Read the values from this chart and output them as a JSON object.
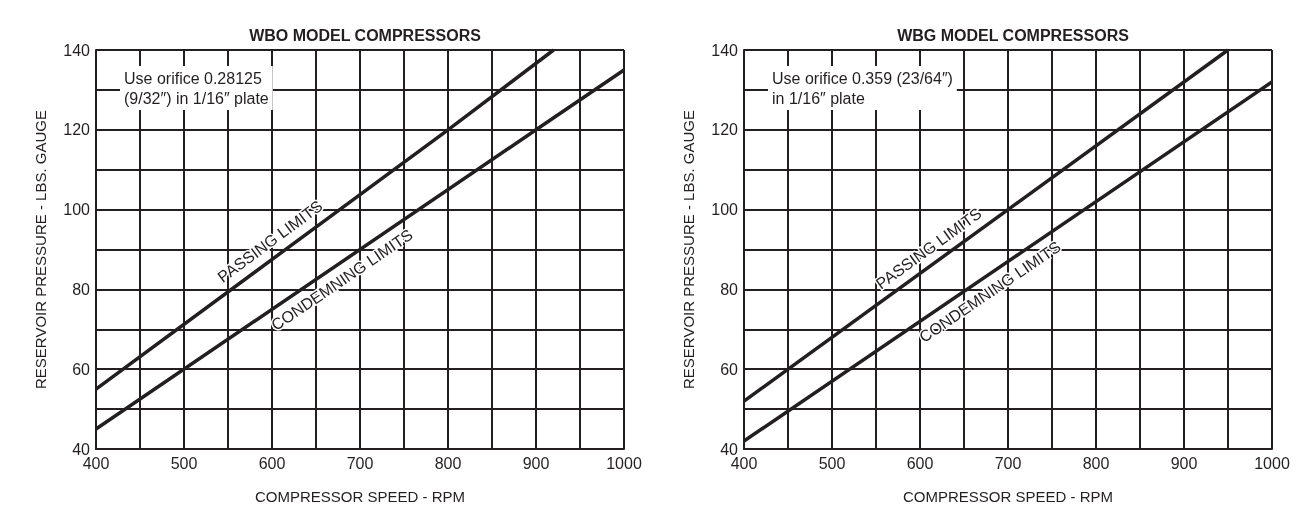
{
  "chart_data": [
    {
      "type": "line",
      "title": "WBO MODEL COMPRESSORS",
      "xlabel": "COMPRESSOR SPEED - RPM",
      "ylabel": "RESERVOIR PRESSURE - LBS. GAUGE",
      "annotations": [
        "Use orifice 0.28125\n(9/32″) in 1/16″ plate"
      ],
      "xlim": [
        400,
        1000
      ],
      "xticks": [
        400,
        500,
        600,
        700,
        800,
        900,
        1000
      ],
      "ylim": [
        40,
        140
      ],
      "yticks": [
        40,
        60,
        80,
        100,
        120,
        140
      ],
      "grid": true,
      "legend": false,
      "marker": "none",
      "line_style": "solid",
      "series": [
        {
          "name": "PASSING LIMITS",
          "color": "#231f20",
          "x": [
            400,
            800,
            920
          ],
          "values": [
            55,
            120,
            140
          ]
        },
        {
          "name": "CONDEMNING LIMITS",
          "color": "#231f20",
          "x": [
            400,
            900,
            1000
          ],
          "values": [
            45,
            120,
            135
          ]
        }
      ]
    },
    {
      "type": "line",
      "title": "WBG MODEL COMPRESSORS",
      "xlabel": "COMPRESSOR SPEED - RPM",
      "ylabel": "RESERVOIR PRESSURE - LBS. GAUGE",
      "annotations": [
        "Use orifice 0.359 (23/64″)\nin 1/16″ plate"
      ],
      "xlim": [
        400,
        1000
      ],
      "xticks": [
        400,
        500,
        600,
        700,
        800,
        900,
        1000
      ],
      "ylim": [
        40,
        140
      ],
      "yticks": [
        40,
        60,
        80,
        100,
        120,
        140
      ],
      "grid": true,
      "legend": false,
      "marker": "none",
      "line_style": "solid",
      "series": [
        {
          "name": "PASSING LIMITS",
          "color": "#231f20",
          "x": [
            400,
            700,
            950
          ],
          "values": [
            52,
            100,
            140
          ]
        },
        {
          "name": "CONDEMNING LIMITS",
          "color": "#231f20",
          "x": [
            400,
            1000
          ],
          "values": [
            42,
            132
          ]
        }
      ]
    }
  ]
}
